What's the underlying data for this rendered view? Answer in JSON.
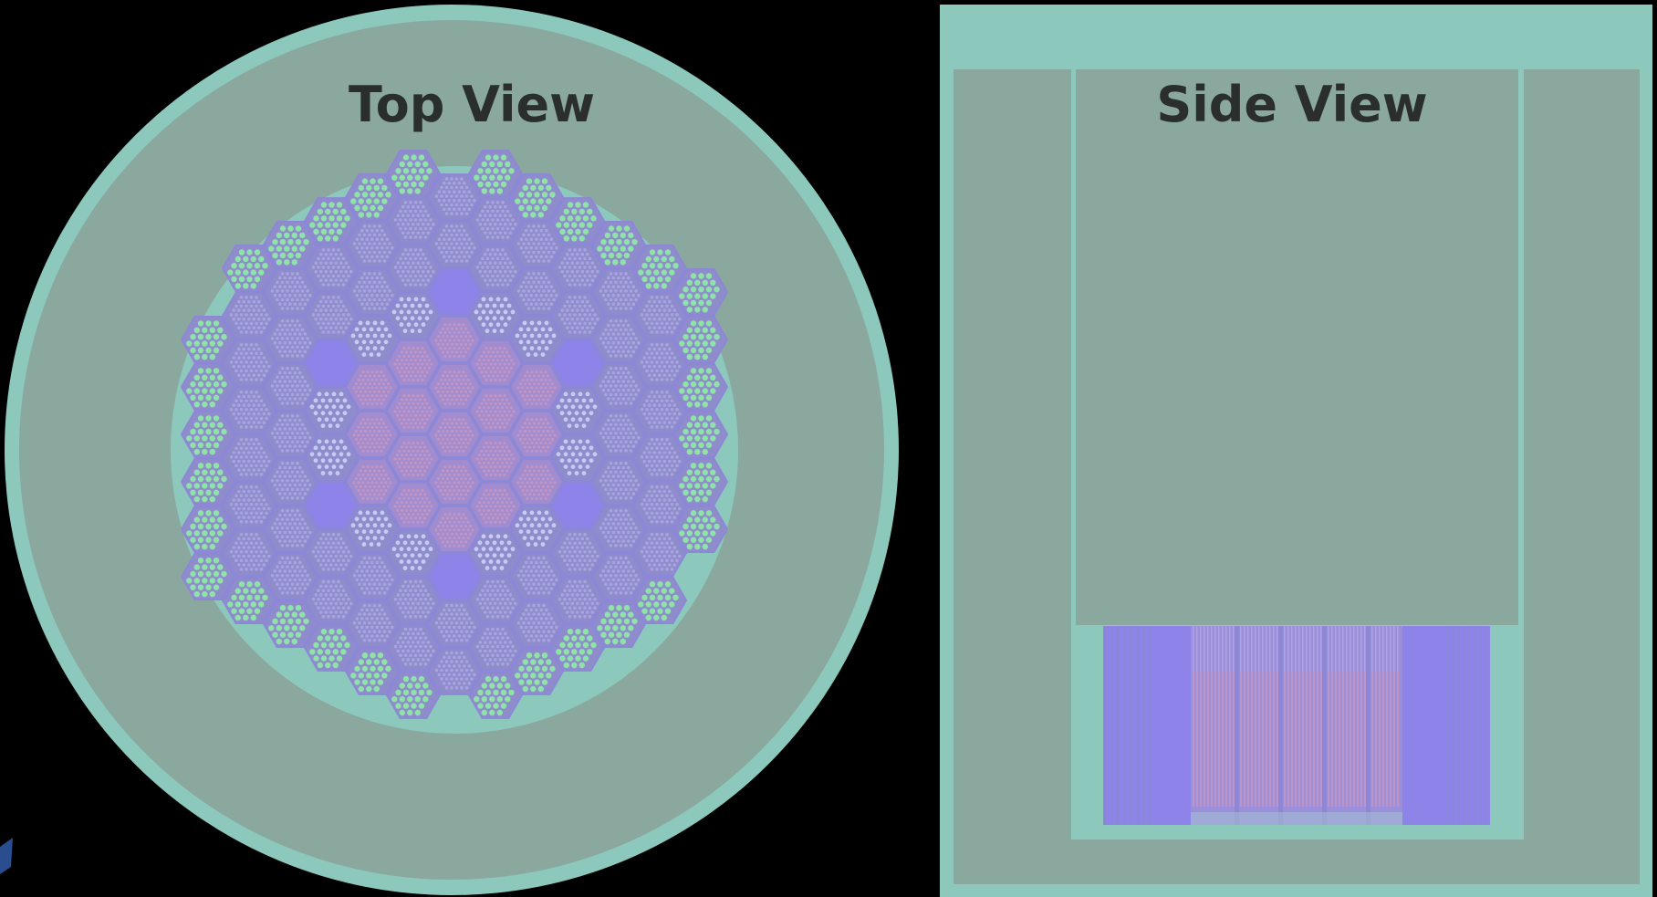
{
  "top_view": {
    "title": "Top View"
  },
  "side_view": {
    "title": "Side View"
  },
  "colors": {
    "background": "#000000",
    "moderator": "#8ba89f",
    "coolant": "#8dc8bd",
    "assembly_edge": "#8c87d6",
    "fuel_inner": "#a08ccf",
    "fuel_pin_inner": "#c296c4",
    "fuel_mid": "#8f8ccc",
    "fuel_pin_mid": "#a9a3e0",
    "light_pin": "#c6cbf4",
    "reflector_pin": "#8fe3a8",
    "control_rod": "#8e83e8"
  },
  "icons": {
    "left_edge_fragment": "blue-shape-icon"
  }
}
